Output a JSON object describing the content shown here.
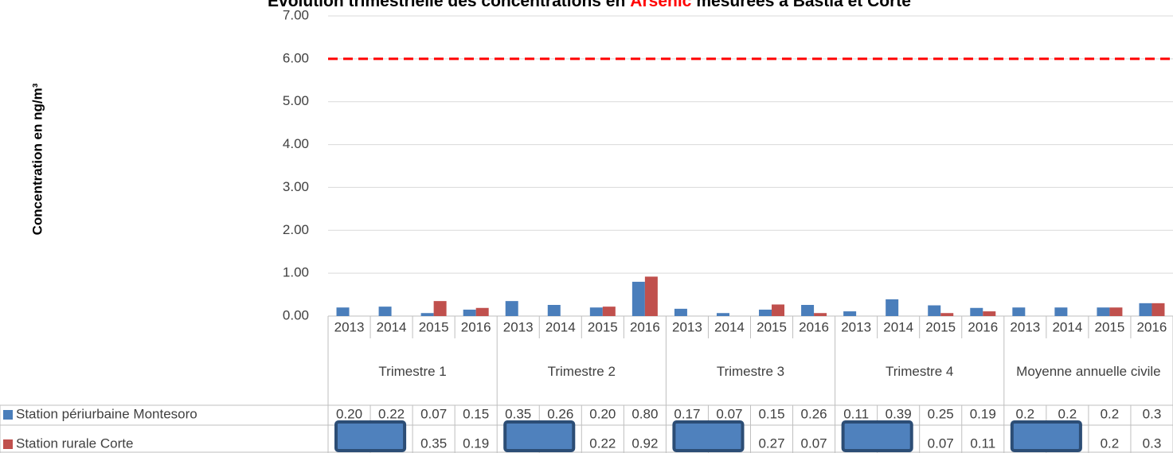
{
  "chart_data": {
    "type": "bar",
    "title_parts": [
      "Evolution trimestrielle des concentrations en",
      "Arsenic",
      "mesurées à Bastia et Corte"
    ],
    "title_highlight_color": "#ff0000",
    "ylabel": "Concentration en ng/m³",
    "groups": [
      "Trimestre 1",
      "Trimestre 2",
      "Trimestre 3",
      "Trimestre 4",
      "Moyenne annuelle civile"
    ],
    "categories": [
      "2013",
      "2014",
      "2015",
      "2016",
      "2013",
      "2014",
      "2015",
      "2016",
      "2013",
      "2014",
      "2015",
      "2016",
      "2013",
      "2014",
      "2015",
      "2016",
      "2013",
      "2014",
      "2015",
      "2016"
    ],
    "series": [
      {
        "name": "Station périurbaine Montesoro",
        "color": "#4a7ebb",
        "values": [
          0.2,
          0.22,
          0.07,
          0.15,
          0.35,
          0.26,
          0.2,
          0.8,
          0.17,
          0.07,
          0.15,
          0.26,
          0.11,
          0.39,
          0.25,
          0.19,
          0.2,
          0.2,
          0.2,
          0.3
        ],
        "value_labels": [
          "0.20",
          "0.22",
          "0.07",
          "0.15",
          "0.35",
          "0.26",
          "0.20",
          "0.80",
          "0.17",
          "0.07",
          "0.15",
          "0.26",
          "0.11",
          "0.39",
          "0.25",
          "0.19",
          "0.2",
          "0.2",
          "0.2",
          "0.3"
        ]
      },
      {
        "name": "Station rurale Corte",
        "color": "#c0504d",
        "values": [
          null,
          null,
          0.35,
          0.19,
          null,
          null,
          0.22,
          0.92,
          null,
          null,
          0.27,
          0.07,
          null,
          null,
          0.07,
          0.11,
          null,
          null,
          0.2,
          0.3
        ],
        "value_labels": [
          null,
          null,
          "0.35",
          "0.19",
          null,
          null,
          "0.22",
          "0.92",
          null,
          null,
          "0.27",
          "0.07",
          null,
          null,
          "0.07",
          "0.11",
          null,
          null,
          "0.2",
          "0.3"
        ]
      }
    ],
    "reference_line": {
      "value": 6,
      "color": "#ff0000"
    },
    "ylim": [
      0,
      7
    ],
    "yticks": [
      {
        "value": 0,
        "label": "0.00"
      },
      {
        "value": 1,
        "label": "1.00"
      },
      {
        "value": 2,
        "label": "2.00"
      },
      {
        "value": 3,
        "label": "3.00"
      },
      {
        "value": 4,
        "label": "4.00"
      },
      {
        "value": 5,
        "label": "5.00"
      },
      {
        "value": 6,
        "label": "6.00"
      },
      {
        "value": 7,
        "label": "7.00"
      }
    ],
    "grid": true
  }
}
